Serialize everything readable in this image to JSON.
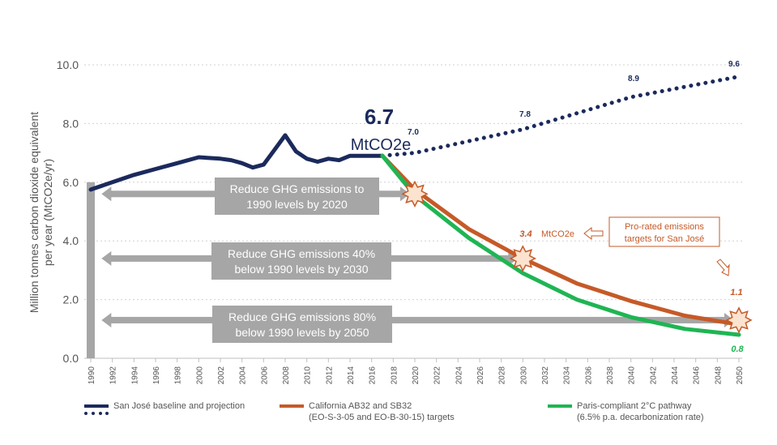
{
  "chart_data": {
    "type": "line",
    "ylabel": "Million tonnes carbon dioxide equivalent per year (MtCO2e/yr)",
    "ylim": [
      0,
      10
    ],
    "yticks": [
      "0.0",
      "2.0",
      "4.0",
      "6.0",
      "8.0",
      "10.0"
    ],
    "xlim": [
      1990,
      2050
    ],
    "xticks": [
      "1990",
      "1992",
      "1994",
      "1996",
      "1998",
      "2000",
      "2002",
      "2004",
      "2006",
      "2008",
      "2010",
      "2012",
      "2014",
      "2016",
      "2018",
      "2020",
      "2022",
      "2024",
      "2026",
      "2028",
      "2030",
      "2032",
      "2034",
      "2036",
      "2038",
      "2040",
      "2042",
      "2044",
      "2046",
      "2048",
      "2050"
    ],
    "grid": "horizontal-dotted",
    "series": [
      {
        "name": "San José baseline and projection",
        "style": "solid",
        "color": "#1b2a5c",
        "x": [
          1990,
          1992,
          1994,
          1996,
          1998,
          2000,
          2002,
          2003,
          2004,
          2005,
          2006,
          2007,
          2008,
          2009,
          2010,
          2011,
          2012,
          2013,
          2014,
          2015,
          2016,
          2017
        ],
        "y": [
          5.75,
          6.0,
          6.25,
          6.45,
          6.65,
          6.85,
          6.8,
          6.75,
          6.65,
          6.5,
          6.6,
          7.1,
          7.6,
          7.05,
          6.8,
          6.7,
          6.8,
          6.75,
          6.9,
          6.9,
          6.9,
          6.9
        ]
      },
      {
        "name": "San José baseline and projection",
        "style": "dotted",
        "color": "#1b2a5c",
        "x": [
          2017,
          2020,
          2025,
          2030,
          2035,
          2040,
          2045,
          2050
        ],
        "y": [
          6.9,
          7.0,
          7.4,
          7.8,
          8.35,
          8.9,
          9.25,
          9.6
        ]
      },
      {
        "name": "California AB32 and SB32 (EO-S-3-05 and EO-B-30-15) targets",
        "style": "solid",
        "color": "#c55a28",
        "x": [
          2017,
          2020,
          2025,
          2030,
          2035,
          2040,
          2045,
          2050
        ],
        "y": [
          6.9,
          5.75,
          4.4,
          3.4,
          2.55,
          1.95,
          1.45,
          1.15
        ]
      },
      {
        "name": "Paris-compliant 2°C pathway (6.5% p.a. decarbonization rate)",
        "style": "solid",
        "color": "#1fb553",
        "x": [
          2017,
          2020,
          2025,
          2030,
          2035,
          2040,
          2045,
          2050
        ],
        "y": [
          6.9,
          5.55,
          4.1,
          2.9,
          2.0,
          1.4,
          1.0,
          0.8
        ]
      }
    ],
    "point_labels": [
      {
        "text": "7.0",
        "color": "#1b2a5c"
      },
      {
        "text": "7.8",
        "color": "#1b2a5c"
      },
      {
        "text": "8.9",
        "color": "#1b2a5c"
      },
      {
        "text": "9.6",
        "color": "#1b2a5c"
      },
      {
        "text": "3.4",
        "color": "#c55a28"
      },
      {
        "text": "1.1",
        "color": "#c55a28"
      },
      {
        "text": "0.8",
        "color": "#1fb553"
      }
    ],
    "current_value": {
      "value": "6.7",
      "unit": "MtCO2e"
    },
    "unit_label": "MtCO2e",
    "targets": [
      {
        "line1": "Reduce GHG emissions to",
        "line2": "1990 levels by 2020",
        "x": 2020,
        "y": 5.6
      },
      {
        "line1": "Reduce GHG emissions 40%",
        "line2": "below 1990 levels by 2030",
        "x": 2030,
        "y": 3.4
      },
      {
        "line1": "Reduce GHG emissions 80%",
        "line2": "below 1990 levels by 2050",
        "x": 2050,
        "y": 1.3
      }
    ],
    "callout": {
      "line1": "Pro-rated emissions",
      "line2": "targets for San José"
    },
    "legend": [
      {
        "line1": "San José baseline and projection",
        "line2": ""
      },
      {
        "line1": "California AB32 and SB32",
        "line2": "(EO-S-3-05 and EO-B-30-15) targets"
      },
      {
        "line1": "Paris-compliant 2°C pathway",
        "line2": "(6.5% p.a. decarbonization rate)"
      }
    ],
    "colors": {
      "navy": "#1b2a5c",
      "orange": "#c55a28",
      "green": "#1fb553",
      "gray": "#a6a6a6",
      "star_fill": "#fbe3cf"
    }
  }
}
